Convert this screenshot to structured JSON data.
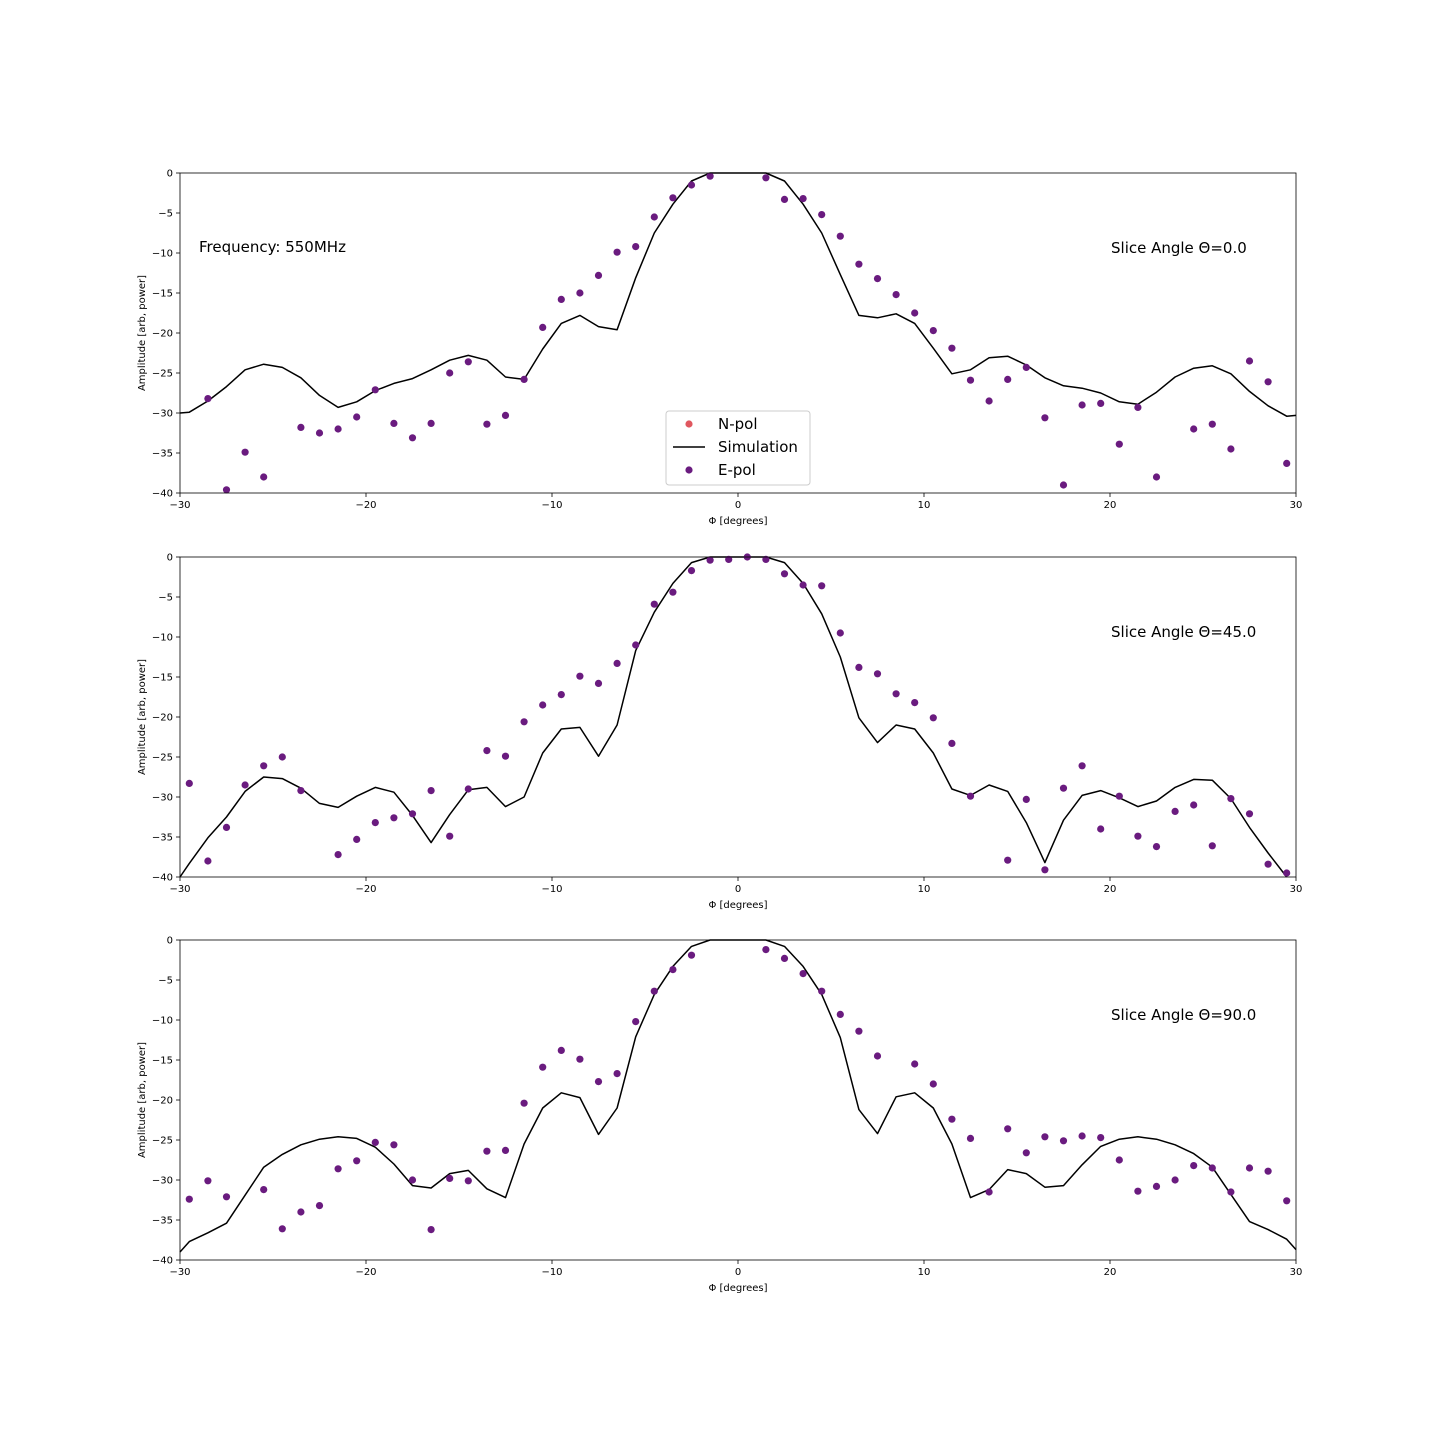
{
  "figure": {
    "text_annotation": "Frequency: 550MHz"
  },
  "legend": {
    "placement": "lower center of first panel",
    "entries": [
      {
        "label": "N-pol",
        "kind": "marker",
        "color": "#e0575f"
      },
      {
        "label": "Simulation",
        "kind": "line",
        "color": "#000000"
      },
      {
        "label": "E-pol",
        "kind": "marker",
        "color": "#6a1b7f"
      }
    ]
  },
  "colors": {
    "simulation": "#000000",
    "epol": "#6a1b7f",
    "npol": "#e0575f"
  },
  "chart_data": [
    {
      "type": "line",
      "annotation": "Slice Angle Θ=0.0",
      "xlabel": "Φ [degrees]",
      "ylabel": "Amplitude [arb, power]",
      "xlim": [
        -30,
        30
      ],
      "ylim": [
        -40,
        0
      ],
      "xticks": [
        "−30",
        "−20",
        "−10",
        "0",
        "10",
        "20",
        "30"
      ],
      "yticks": [
        "0",
        "−5",
        "−10",
        "−15",
        "−20",
        "−25",
        "−30",
        "−35",
        "−40"
      ],
      "grid": false,
      "series": [
        {
          "name": "Simulation",
          "kind": "line",
          "x": [
            -30,
            -29.5,
            -28.5,
            -27.5,
            -26.5,
            -25.5,
            -24.5,
            -23.5,
            -22.5,
            -21.5,
            -20.5,
            -19.5,
            -18.5,
            -17.5,
            -16.5,
            -15.5,
            -14.5,
            -13.5,
            -12.5,
            -11.5,
            -10.5,
            -9.5,
            -8.5,
            -7.5,
            -6.5,
            -5.5,
            -4.5,
            -3.5,
            -2.5,
            -1.5,
            -0.5,
            0.5,
            1.5,
            2.5,
            3.5,
            4.5,
            5.5,
            6.5,
            7.5,
            8.5,
            9.5,
            10.5,
            11.5,
            12.5,
            13.5,
            14.5,
            15.5,
            16.5,
            17.5,
            18.5,
            19.5,
            20.5,
            21.5,
            22.5,
            23.5,
            24.5,
            25.5,
            26.5,
            27.5,
            28.5,
            29.5,
            30
          ],
          "y": [
            -30,
            -29.9,
            -28.5,
            -26.7,
            -24.6,
            -23.9,
            -24.3,
            -25.6,
            -27.8,
            -29.3,
            -28.6,
            -27.2,
            -26.3,
            -25.7,
            -24.6,
            -23.4,
            -22.8,
            -23.4,
            -25.5,
            -25.8,
            -22.0,
            -18.8,
            -17.8,
            -19.2,
            -19.6,
            -13.1,
            -7.5,
            -3.9,
            -1.0,
            0,
            0,
            0,
            0,
            -1.0,
            -3.9,
            -7.5,
            -12.7,
            -17.8,
            -18.1,
            -17.6,
            -18.8,
            -21.9,
            -25.1,
            -24.6,
            -23.1,
            -22.9,
            -24.0,
            -25.6,
            -26.6,
            -26.9,
            -27.5,
            -28.6,
            -28.9,
            -27.4,
            -25.5,
            -24.4,
            -24.1,
            -25.1,
            -27.3,
            -29.1,
            -30.4,
            -30.3
          ]
        },
        {
          "name": "E-pol",
          "kind": "scatter",
          "x": [
            -28.5,
            -27.5,
            -26.5,
            -25.5,
            -23.5,
            -22.5,
            -21.5,
            -20.5,
            -19.5,
            -18.5,
            -17.5,
            -16.5,
            -15.5,
            -14.5,
            -13.5,
            -12.5,
            -11.5,
            -10.5,
            -9.5,
            -8.5,
            -7.5,
            -6.5,
            -5.5,
            -4.5,
            -3.5,
            -2.5,
            -1.5,
            1.5,
            2.5,
            3.5,
            4.5,
            5.5,
            6.5,
            7.5,
            8.5,
            9.5,
            10.5,
            11.5,
            12.5,
            13.5,
            14.5,
            15.5,
            16.5,
            17.5,
            18.5,
            19.5,
            20.5,
            21.5,
            22.5,
            24.5,
            25.5,
            26.5,
            27.5,
            28.5,
            29.5
          ],
          "y": [
            -28.2,
            -39.6,
            -34.9,
            -38.0,
            -31.8,
            -32.5,
            -32.0,
            -30.5,
            -27.1,
            -31.3,
            -33.1,
            -31.3,
            -25.0,
            -23.6,
            -31.4,
            -30.3,
            -25.8,
            -19.3,
            -15.8,
            -15.0,
            -12.8,
            -9.9,
            -9.2,
            -5.5,
            -3.1,
            -1.5,
            -0.4,
            -0.6,
            -3.3,
            -3.2,
            -5.2,
            -7.9,
            -11.4,
            -13.2,
            -15.2,
            -17.5,
            -19.7,
            -21.9,
            -25.9,
            -28.5,
            -25.8,
            -24.3,
            -30.6,
            -39.0,
            -29.0,
            -28.8,
            -33.9,
            -29.3,
            -38.0,
            -32.0,
            -31.4,
            -34.5,
            -23.5,
            -26.1,
            -36.3
          ]
        }
      ]
    },
    {
      "type": "line",
      "annotation": "Slice Angle Θ=45.0",
      "xlabel": "Φ [degrees]",
      "ylabel": "Amplitude [arb, power]",
      "xlim": [
        -30,
        30
      ],
      "ylim": [
        -40,
        0
      ],
      "xticks": [
        "−30",
        "−20",
        "−10",
        "0",
        "10",
        "20",
        "30"
      ],
      "yticks": [
        "0",
        "−5",
        "−10",
        "−15",
        "−20",
        "−25",
        "−30",
        "−35",
        "−40"
      ],
      "grid": false,
      "series": [
        {
          "name": "Simulation",
          "kind": "line",
          "x": [
            -30,
            -29.5,
            -28.5,
            -27.5,
            -26.5,
            -25.5,
            -24.5,
            -23.5,
            -22.5,
            -21.5,
            -20.5,
            -19.5,
            -18.5,
            -17.5,
            -16.5,
            -15.5,
            -14.5,
            -13.5,
            -12.5,
            -11.5,
            -10.5,
            -9.5,
            -8.5,
            -7.5,
            -6.5,
            -5.5,
            -4.5,
            -3.5,
            -2.5,
            -1.5,
            -0.5,
            0.5,
            1.5,
            2.5,
            3.5,
            4.5,
            5.5,
            6.5,
            7.5,
            8.5,
            9.5,
            10.5,
            11.5,
            12.5,
            13.5,
            14.5,
            15.5,
            16.5,
            17.5,
            18.5,
            19.5,
            20.5,
            21.5,
            22.5,
            23.5,
            24.5,
            25.5,
            26.5,
            27.5,
            28.5,
            29.5
          ],
          "y": [
            -40,
            -38.3,
            -35.1,
            -32.5,
            -29.3,
            -27.5,
            -27.7,
            -28.9,
            -30.8,
            -31.3,
            -29.9,
            -28.8,
            -29.4,
            -32.3,
            -35.7,
            -32.2,
            -29.1,
            -28.8,
            -31.2,
            -30.0,
            -24.5,
            -21.5,
            -21.3,
            -24.9,
            -21.0,
            -11.7,
            -6.9,
            -3.3,
            -0.7,
            0,
            0,
            0,
            0,
            -0.7,
            -3.3,
            -7.1,
            -12.5,
            -20.1,
            -23.2,
            -21.0,
            -21.5,
            -24.5,
            -29.0,
            -29.8,
            -28.5,
            -29.3,
            -33.2,
            -38.2,
            -32.9,
            -29.8,
            -29.2,
            -30.1,
            -31.2,
            -30.5,
            -28.8,
            -27.8,
            -27.9,
            -30.2,
            -33.8,
            -37.0,
            -40
          ]
        },
        {
          "name": "E-pol",
          "kind": "scatter",
          "x": [
            -29.5,
            -28.5,
            -27.5,
            -26.5,
            -25.5,
            -24.5,
            -23.5,
            -21.5,
            -20.5,
            -19.5,
            -18.5,
            -17.5,
            -16.5,
            -15.5,
            -14.5,
            -13.5,
            -12.5,
            -11.5,
            -10.5,
            -9.5,
            -8.5,
            -7.5,
            -6.5,
            -5.5,
            -4.5,
            -3.5,
            -2.5,
            -1.5,
            -0.5,
            0.5,
            1.5,
            2.5,
            3.5,
            4.5,
            5.5,
            6.5,
            7.5,
            8.5,
            9.5,
            10.5,
            11.5,
            12.5,
            14.5,
            15.5,
            16.5,
            17.5,
            18.5,
            19.5,
            20.5,
            21.5,
            22.5,
            23.5,
            24.5,
            25.5,
            26.5,
            27.5,
            28.5,
            29.5
          ],
          "y": [
            -28.3,
            -38.0,
            -33.8,
            -28.5,
            -26.1,
            -25.0,
            -29.2,
            -37.2,
            -35.3,
            -33.2,
            -32.6,
            -32.1,
            -29.2,
            -34.9,
            -29.0,
            -24.2,
            -24.9,
            -20.6,
            -18.5,
            -17.2,
            -14.9,
            -15.8,
            -13.3,
            -11.0,
            -5.9,
            -4.4,
            -1.7,
            -0.4,
            -0.3,
            0,
            -0.3,
            -2.1,
            -3.5,
            -3.6,
            -9.5,
            -13.8,
            -14.6,
            -17.1,
            -18.2,
            -20.1,
            -23.3,
            -29.9,
            -37.9,
            -30.3,
            -39.1,
            -28.9,
            -26.1,
            -34.0,
            -29.9,
            -34.9,
            -36.2,
            -31.8,
            -31.0,
            -36.1,
            -30.2,
            -32.1,
            -38.4,
            -39.5
          ]
        }
      ]
    },
    {
      "type": "line",
      "annotation": "Slice Angle Θ=90.0",
      "xlabel": "Φ [degrees]",
      "ylabel": "Amplitude [arb, power]",
      "xlim": [
        -30,
        30
      ],
      "ylim": [
        -40,
        0
      ],
      "xticks": [
        "−30",
        "−20",
        "−10",
        "0",
        "10",
        "20",
        "30"
      ],
      "yticks": [
        "0",
        "−5",
        "−10",
        "−15",
        "−20",
        "−25",
        "−30",
        "−35",
        "−40"
      ],
      "grid": false,
      "series": [
        {
          "name": "Simulation",
          "kind": "line",
          "x": [
            -30,
            -29.5,
            -28.5,
            -27.5,
            -26.5,
            -25.5,
            -24.5,
            -23.5,
            -22.5,
            -21.5,
            -20.5,
            -19.5,
            -18.5,
            -17.5,
            -16.5,
            -15.5,
            -14.5,
            -13.5,
            -12.5,
            -11.5,
            -10.5,
            -9.5,
            -8.5,
            -7.5,
            -6.5,
            -5.5,
            -4.5,
            -3.5,
            -2.5,
            -1.5,
            -0.5,
            0.5,
            1.5,
            2.5,
            3.5,
            4.5,
            5.5,
            6.5,
            7.5,
            8.5,
            9.5,
            10.5,
            11.5,
            12.5,
            13.5,
            14.5,
            15.5,
            16.5,
            17.5,
            18.5,
            19.5,
            20.5,
            21.5,
            22.5,
            23.5,
            24.5,
            25.5,
            26.5,
            27.5,
            28.5,
            29.5,
            30
          ],
          "y": [
            -39.0,
            -37.7,
            -36.6,
            -35.4,
            -31.9,
            -28.4,
            -26.8,
            -25.6,
            -24.9,
            -24.6,
            -24.8,
            -25.9,
            -28.0,
            -30.7,
            -31.0,
            -29.2,
            -28.8,
            -31.1,
            -32.2,
            -25.5,
            -21.0,
            -19.1,
            -19.7,
            -24.3,
            -21.0,
            -12.1,
            -6.8,
            -3.3,
            -0.8,
            0,
            0,
            0,
            0,
            -0.8,
            -3.3,
            -6.8,
            -12.2,
            -21.2,
            -24.2,
            -19.6,
            -19.1,
            -21.0,
            -25.5,
            -32.2,
            -31.2,
            -28.7,
            -29.2,
            -30.9,
            -30.7,
            -28.1,
            -25.8,
            -24.9,
            -24.6,
            -24.9,
            -25.6,
            -26.7,
            -28.4,
            -31.8,
            -35.2,
            -36.2,
            -37.4,
            -38.7
          ]
        },
        {
          "name": "E-pol",
          "kind": "scatter",
          "x": [
            -29.5,
            -28.5,
            -27.5,
            -25.5,
            -24.5,
            -23.5,
            -22.5,
            -21.5,
            -20.5,
            -19.5,
            -18.5,
            -17.5,
            -16.5,
            -15.5,
            -14.5,
            -13.5,
            -12.5,
            -11.5,
            -10.5,
            -9.5,
            -8.5,
            -7.5,
            -6.5,
            -5.5,
            -4.5,
            -3.5,
            -2.5,
            1.5,
            2.5,
            3.5,
            4.5,
            5.5,
            6.5,
            7.5,
            9.5,
            10.5,
            11.5,
            12.5,
            13.5,
            14.5,
            15.5,
            16.5,
            17.5,
            18.5,
            19.5,
            20.5,
            21.5,
            22.5,
            23.5,
            24.5,
            25.5,
            26.5,
            27.5,
            28.5,
            29.5
          ],
          "y": [
            -32.4,
            -30.1,
            -32.1,
            -31.2,
            -36.1,
            -34.0,
            -33.2,
            -28.6,
            -27.6,
            -25.3,
            -25.6,
            -30.0,
            -36.2,
            -29.8,
            -30.1,
            -26.4,
            -26.3,
            -20.4,
            -15.9,
            -13.8,
            -14.9,
            -17.7,
            -16.7,
            -10.2,
            -6.4,
            -3.7,
            -1.9,
            -1.2,
            -2.3,
            -4.2,
            -6.4,
            -9.3,
            -11.4,
            -14.5,
            -15.5,
            -18.0,
            -22.4,
            -24.8,
            -31.5,
            -23.6,
            -26.6,
            -24.6,
            -25.1,
            -24.5,
            -24.7,
            -27.5,
            -31.4,
            -30.8,
            -30.0,
            -28.2,
            -28.5,
            -31.5,
            -28.5,
            -28.9,
            -32.6
          ]
        }
      ]
    }
  ]
}
